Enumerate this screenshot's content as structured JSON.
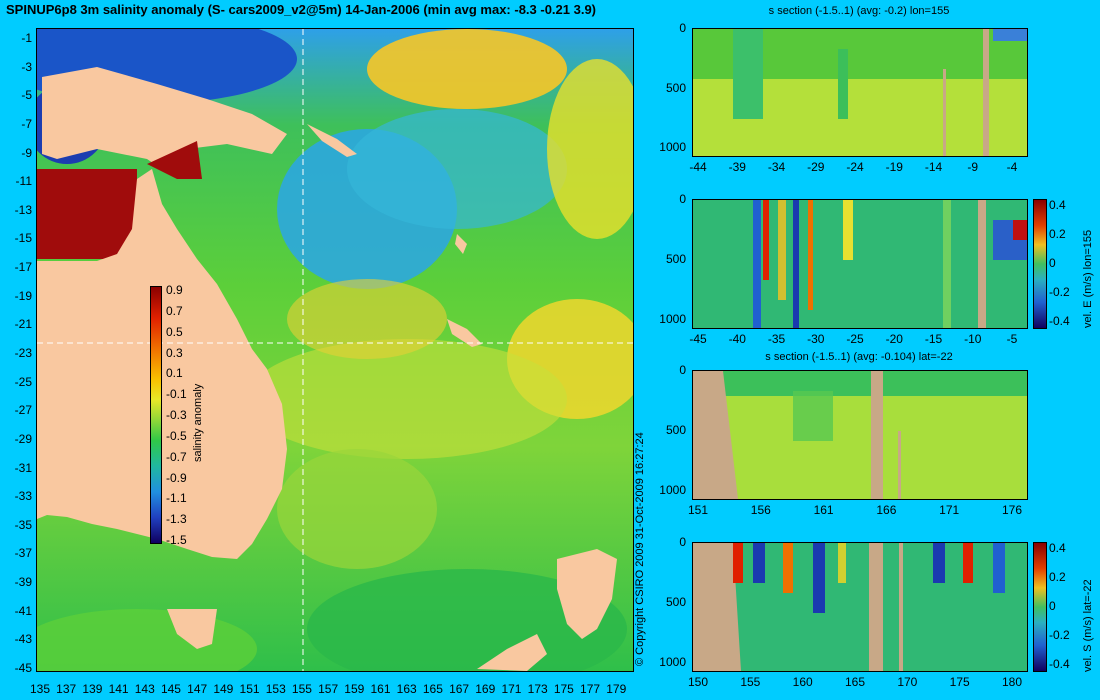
{
  "map": {
    "title": "SPINUP6p8 3m salinity anomaly (S- cars2009_v2@5m) 14-Jan-2006 (min avg max: -8.3 -0.21 3.9)",
    "x_ticks": [
      "135",
      "137",
      "139",
      "141",
      "143",
      "145",
      "147",
      "149",
      "151",
      "153",
      "155",
      "157",
      "159",
      "161",
      "163",
      "165",
      "167",
      "169",
      "171",
      "173",
      "175",
      "177",
      "179"
    ],
    "y_ticks": [
      "-1",
      "-3",
      "-5",
      "-7",
      "-9",
      "-11",
      "-13",
      "-15",
      "-17",
      "-19",
      "-21",
      "-23",
      "-25",
      "-27",
      "-29",
      "-31",
      "-33",
      "-35",
      "-37",
      "-39",
      "-41",
      "-43",
      "-45"
    ],
    "colorbar": {
      "label": "salinity anomaly",
      "ticks": [
        "0.9",
        "0.7",
        "0.5",
        "0.3",
        "0.1",
        "-0.1",
        "-0.3",
        "-0.5",
        "-0.7",
        "-0.9",
        "-1.1",
        "-1.3",
        "-1.5"
      ]
    },
    "copyright": "© Copyright CSIRO 2009   31-Oct-2009 16:27:24",
    "section_lon": 155,
    "section_lat": -22
  },
  "panels": [
    {
      "title": "s section (-1.5..1) (avg: -0.2) lon=155",
      "x_ticks": [
        "-44",
        "-39",
        "-34",
        "-29",
        "-24",
        "-19",
        "-14",
        "-9",
        "-4"
      ],
      "y_ticks": [
        "0",
        "500",
        "1000"
      ],
      "colorbar": null
    },
    {
      "title": "",
      "x_ticks": [
        "-45",
        "-40",
        "-35",
        "-30",
        "-25",
        "-20",
        "-15",
        "-10",
        "-5"
      ],
      "y_ticks": [
        "0",
        "500",
        "1000"
      ],
      "colorbar": {
        "label": "vel. E (m/s) lon=155",
        "ticks": [
          "0.4",
          "0.2",
          "0",
          "-0.2",
          "-0.4"
        ]
      }
    },
    {
      "title": "s section (-1.5..1) (avg: -0.104) lat=-22",
      "x_ticks": [
        "151",
        "156",
        "161",
        "166",
        "171",
        "176"
      ],
      "y_ticks": [
        "0",
        "500",
        "1000"
      ],
      "colorbar": null
    },
    {
      "title": "",
      "x_ticks": [
        "150",
        "155",
        "160",
        "165",
        "170",
        "175",
        "180"
      ],
      "y_ticks": [
        "0",
        "500",
        "1000"
      ],
      "colorbar": {
        "label": "vel. S (m/s) lat=-22",
        "ticks": [
          "0.4",
          "0.2",
          "0",
          "-0.2",
          "-0.4"
        ]
      }
    }
  ],
  "colors": {
    "background": "#00ccff",
    "land": "#f9c8a0",
    "section_land": "#c8a887"
  }
}
